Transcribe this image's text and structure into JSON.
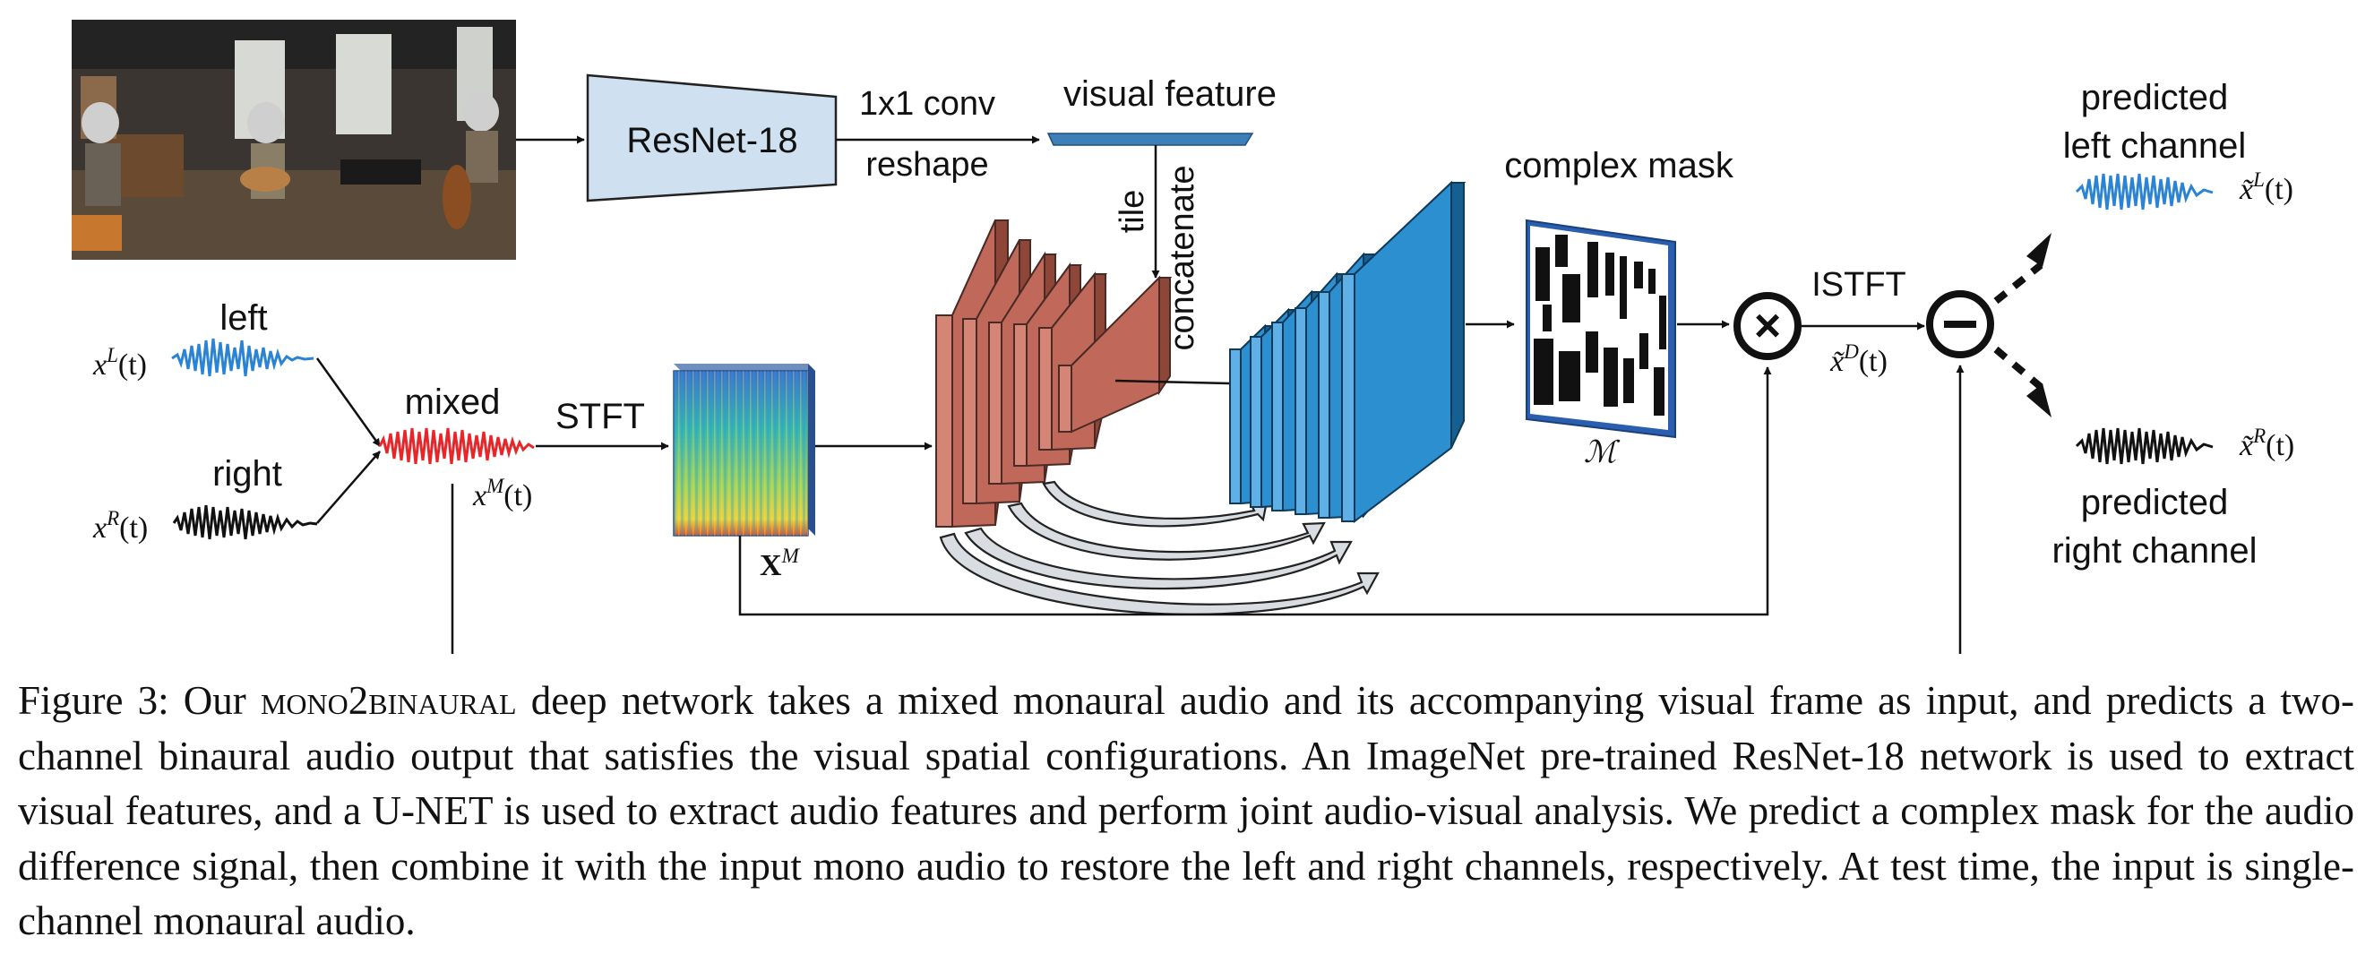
{
  "diagram": {
    "resnet_label": "ResNet-18",
    "conv_label": "1x1 conv",
    "reshape_label": "reshape",
    "visual_feature_label": "visual feature",
    "tile_label": "tile",
    "concatenate_label": "concatenate",
    "complex_mask_label": "complex mask",
    "mask_symbol": "ℳ",
    "left_label": "left",
    "right_label": "right",
    "mixed_label": "mixed",
    "stft_label": "STFT",
    "istft_label": "ISTFT",
    "left_signal": {
      "sym": "x",
      "sup": "L",
      "arg": "(t)"
    },
    "right_signal": {
      "sym": "x",
      "sup": "R",
      "arg": "(t)"
    },
    "mixed_signal": {
      "sym": "x",
      "sup": "M",
      "arg": "(t)"
    },
    "spectrogram_symbol": {
      "sym": "X",
      "sup": "M"
    },
    "diff_signal": {
      "sym": "x̃",
      "sup": "D",
      "arg": "(t)"
    },
    "pred_left_signal": {
      "sym": "x̃",
      "sup": "L",
      "arg": "(t)"
    },
    "pred_right_signal": {
      "sym": "x̃",
      "sup": "R",
      "arg": "(t)"
    },
    "predicted_left_line1": "predicted",
    "predicted_left_line2": "left channel",
    "predicted_right_line1": "predicted",
    "predicted_right_line2": "right channel",
    "multiply_symbol": "×",
    "subtract_symbol": "−",
    "colors": {
      "resnet_fill": "#cfe0f1",
      "encoder_fill": "#c0695a",
      "decoder_fill": "#2b8fd0",
      "left_wave": "#2a83d4",
      "mixed_wave": "#e8262a",
      "right_wave": "#111111",
      "visual_feature": "#3f7fb8"
    }
  },
  "caption": {
    "prefix": "Figure 3: Our ",
    "model_name": "mono2binaural",
    "text": " deep network takes a mixed monaural audio and its accompanying visual frame as input, and predicts a two-channel binaural audio output that satisfies the visual spatial configurations. An ImageNet pre-trained ResNet-18 network is used to extract visual features, and a U-NET is used to extract audio features and perform joint audio-visual analysis. We predict a complex mask for the audio difference signal, then combine it with the input mono audio to restore the left and right channels, respectively. At test time, the input is single-channel monaural audio."
  }
}
